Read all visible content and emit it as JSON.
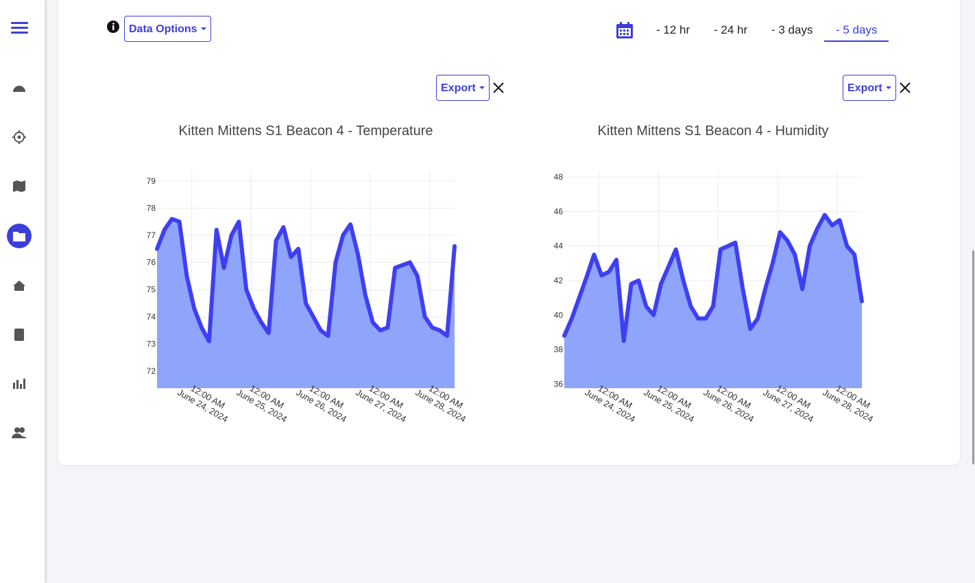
{
  "toolbar": {
    "data_options": "Data Options",
    "ranges": [
      "- 12 hr",
      "- 24 hr",
      "- 3 days",
      "- 5 days"
    ],
    "active_range": 3
  },
  "panels": [
    {
      "export": "Export"
    },
    {
      "export": "Export"
    }
  ],
  "chart_data": [
    {
      "type": "area",
      "title": "Kitten Mittens S1 Beacon 4  - Temperature",
      "x": [
        "2024-06-23T10:00",
        "2024-06-23T13:00",
        "2024-06-23T16:00",
        "2024-06-23T19:00",
        "2024-06-23T22:00",
        "2024-06-24T01:00",
        "2024-06-24T04:00",
        "2024-06-24T07:00",
        "2024-06-24T10:00",
        "2024-06-24T13:00",
        "2024-06-24T16:00",
        "2024-06-24T19:00",
        "2024-06-24T22:00",
        "2024-06-25T01:00",
        "2024-06-25T04:00",
        "2024-06-25T07:00",
        "2024-06-25T10:00",
        "2024-06-25T13:00",
        "2024-06-25T16:00",
        "2024-06-25T19:00",
        "2024-06-25T22:00",
        "2024-06-26T01:00",
        "2024-06-26T04:00",
        "2024-06-26T07:00",
        "2024-06-26T10:00",
        "2024-06-26T13:00",
        "2024-06-26T16:00",
        "2024-06-26T19:00",
        "2024-06-26T22:00",
        "2024-06-27T01:00",
        "2024-06-27T04:00",
        "2024-06-27T07:00",
        "2024-06-27T10:00",
        "2024-06-27T13:00",
        "2024-06-27T16:00",
        "2024-06-27T19:00",
        "2024-06-27T22:00",
        "2024-06-28T01:00",
        "2024-06-28T04:00",
        "2024-06-28T07:00",
        "2024-06-28T10:00"
      ],
      "values": [
        76.5,
        77.2,
        77.6,
        77.5,
        75.5,
        74.3,
        73.6,
        73.1,
        77.2,
        75.8,
        77.0,
        77.5,
        75.0,
        74.3,
        73.8,
        73.4,
        76.8,
        77.3,
        76.2,
        76.5,
        74.5,
        74.0,
        73.5,
        73.3,
        76.0,
        77.0,
        77.4,
        76.3,
        74.8,
        73.8,
        73.5,
        73.6,
        75.8,
        75.9,
        76.0,
        75.5,
        74.0,
        73.6,
        73.5,
        73.3,
        76.6
      ],
      "color": "#3f3ff2",
      "fill_color": "#8fa4fb",
      "xlim": [
        "2024-06-23T10:00",
        "2024-06-28T10:00"
      ],
      "xticks": [
        {
          "value": "2024-06-24T00:00",
          "label": "12:00 AM\nJune 24, 2024"
        },
        {
          "value": "2024-06-25T00:00",
          "label": "12:00 AM\nJune 25, 2024"
        },
        {
          "value": "2024-06-26T00:00",
          "label": "12:00 AM\nJune 26, 2024"
        },
        {
          "value": "2024-06-27T00:00",
          "label": "12:00 AM\nJune 27, 2024"
        },
        {
          "value": "2024-06-28T00:00",
          "label": "12:00 AM\nJune 28, 2024"
        }
      ],
      "ylim": [
        71.37,
        79.4
      ],
      "yticks": [
        72,
        73,
        74,
        75,
        76,
        77,
        78,
        79
      ],
      "grid": true
    },
    {
      "type": "area",
      "title": "Kitten Mittens S1 Beacon 4  - Humidity",
      "x": [
        "2024-06-23T10:00",
        "2024-06-23T13:00",
        "2024-06-23T16:00",
        "2024-06-23T19:00",
        "2024-06-23T22:00",
        "2024-06-24T01:00",
        "2024-06-24T04:00",
        "2024-06-24T07:00",
        "2024-06-24T10:00",
        "2024-06-24T13:00",
        "2024-06-24T16:00",
        "2024-06-24T19:00",
        "2024-06-24T22:00",
        "2024-06-25T01:00",
        "2024-06-25T04:00",
        "2024-06-25T07:00",
        "2024-06-25T10:00",
        "2024-06-25T13:00",
        "2024-06-25T16:00",
        "2024-06-25T19:00",
        "2024-06-25T22:00",
        "2024-06-26T01:00",
        "2024-06-26T04:00",
        "2024-06-26T07:00",
        "2024-06-26T10:00",
        "2024-06-26T13:00",
        "2024-06-26T16:00",
        "2024-06-26T19:00",
        "2024-06-26T22:00",
        "2024-06-27T01:00",
        "2024-06-27T04:00",
        "2024-06-27T07:00",
        "2024-06-27T10:00",
        "2024-06-27T13:00",
        "2024-06-27T16:00",
        "2024-06-27T19:00",
        "2024-06-27T22:00",
        "2024-06-28T01:00",
        "2024-06-28T04:00",
        "2024-06-28T07:00",
        "2024-06-28T10:00"
      ],
      "values": [
        38.8,
        39.8,
        41.0,
        42.2,
        43.5,
        42.3,
        42.5,
        43.2,
        38.5,
        41.8,
        42.0,
        40.5,
        40.0,
        41.8,
        42.8,
        43.8,
        42.0,
        40.5,
        39.8,
        39.8,
        40.5,
        43.8,
        44.0,
        44.2,
        41.5,
        39.2,
        39.8,
        41.5,
        43.0,
        44.8,
        44.3,
        43.5,
        41.5,
        44.0,
        45.0,
        45.8,
        45.2,
        45.5,
        44.0,
        43.5,
        40.8
      ],
      "color": "#3f3ff2",
      "fill_color": "#8fa4fb",
      "xlim": [
        "2024-06-23T10:00",
        "2024-06-28T10:00"
      ],
      "xticks": [
        {
          "value": "2024-06-24T00:00",
          "label": "12:00 AM\nJune 24, 2024"
        },
        {
          "value": "2024-06-25T00:00",
          "label": "12:00 AM\nJune 25, 2024"
        },
        {
          "value": "2024-06-26T00:00",
          "label": "12:00 AM\nJune 26, 2024"
        },
        {
          "value": "2024-06-27T00:00",
          "label": "12:00 AM\nJune 27, 2024"
        },
        {
          "value": "2024-06-28T00:00",
          "label": "12:00 AM\nJune 28, 2024"
        }
      ],
      "ylim": [
        35.76,
        48.4
      ],
      "yticks": [
        36,
        38,
        40,
        42,
        44,
        46,
        48
      ],
      "grid": true
    }
  ]
}
